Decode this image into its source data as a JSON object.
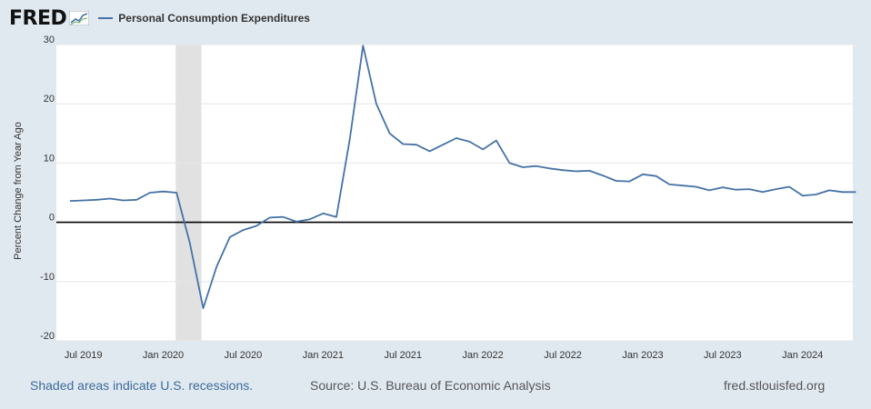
{
  "header": {
    "logo_text": "FRED",
    "series_label": "Personal Consumption Expenditures"
  },
  "footer": {
    "recession_note": "Shaded areas indicate U.S. recessions.",
    "source": "Source: U.S. Bureau of Economic Analysis",
    "site": "fred.stlouisfed.org"
  },
  "colors": {
    "series": "#4572a7",
    "recession_band": "#e1e1e1",
    "page_background": "#e1e9f0",
    "plot_background": "#ffffff"
  },
  "chart_data": {
    "type": "line",
    "title": "Personal Consumption Expenditures",
    "xlabel": "",
    "ylabel": "Percent Change from Year Ago",
    "ylim": [
      -20,
      30
    ],
    "yticks": [
      -20,
      -10,
      0,
      10,
      20,
      30
    ],
    "grid": true,
    "x_start": "2019-06",
    "x_end": "2024-05",
    "xticks": [
      {
        "label": "Jul 2019",
        "month_index": 1
      },
      {
        "label": "Jan 2020",
        "month_index": 7
      },
      {
        "label": "Jul 2020",
        "month_index": 13
      },
      {
        "label": "Jan 2021",
        "month_index": 19
      },
      {
        "label": "Jul 2021",
        "month_index": 25
      },
      {
        "label": "Jan 2022",
        "month_index": 31
      },
      {
        "label": "Jul 2022",
        "month_index": 37
      },
      {
        "label": "Jan 2023",
        "month_index": 43
      },
      {
        "label": "Jul 2023",
        "month_index": 49
      },
      {
        "label": "Jan 2024",
        "month_index": 55
      }
    ],
    "recessions": [
      {
        "start_month_index": 8,
        "end_month_index": 10
      }
    ],
    "series": [
      {
        "name": "Personal Consumption Expenditures",
        "values": [
          3.6,
          3.7,
          3.8,
          4.0,
          3.7,
          3.8,
          5.0,
          5.2,
          5.0,
          -3.5,
          -14.5,
          -7.5,
          -2.5,
          -1.3,
          -0.6,
          0.8,
          0.9,
          0.1,
          0.5,
          1.5,
          0.9,
          14.0,
          29.8,
          20.0,
          15.0,
          13.2,
          13.1,
          12.0,
          13.1,
          14.2,
          13.6,
          12.3,
          13.8,
          10.0,
          9.3,
          9.5,
          9.1,
          8.8,
          8.6,
          8.7,
          7.9,
          7.0,
          6.9,
          8.1,
          7.8,
          6.4,
          6.2,
          6.0,
          5.4,
          5.9,
          5.5,
          5.6,
          5.1,
          5.6,
          6.0,
          4.5,
          4.7,
          5.4,
          5.1,
          5.1
        ]
      }
    ]
  }
}
